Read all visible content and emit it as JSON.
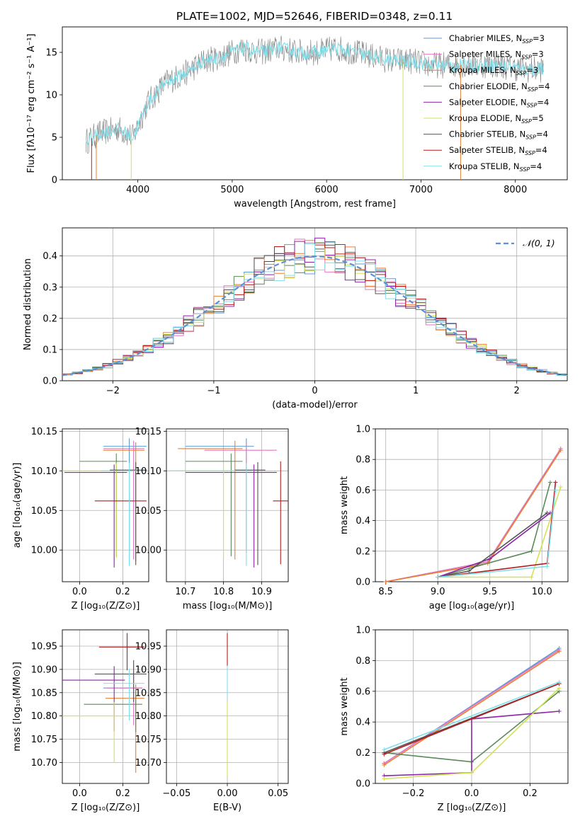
{
  "figure_title": "PLATE=1002, MJD=52646, FIBERID=0348, z=0.11",
  "colors": {
    "chab_miles": "#5b9bd5",
    "salp_miles": "#e377c2",
    "krou_miles": "#ed7d31",
    "chab_elodie": "#5a8a5a",
    "salp_elodie": "#8e24aa",
    "krou_elodie": "#d4e157",
    "chab_stelib": "#555555",
    "salp_stelib": "#b71c1c",
    "krou_stelib": "#80deea",
    "gauss": "#5b8fd6",
    "grid": "#b0b0b0"
  },
  "chart_data": [
    {
      "type": "line",
      "id": "spectrum",
      "title": "PLATE=1002, MJD=52646, FIBERID=0348, z=0.11",
      "xlabel": "wavelength [Angstrom, rest frame]",
      "ylabel": "Flux [fλ10⁻¹⁷ erg cm⁻² s⁻¹ A⁻¹]",
      "xlim": [
        3200,
        8550
      ],
      "ylim": [
        0,
        18
      ],
      "xticks": [
        4000,
        5000,
        6000,
        7000,
        8000
      ],
      "yticks": [
        0,
        5,
        10,
        15
      ],
      "grid": false,
      "legend_position": "right",
      "spectrum_envelope": {
        "x": [
          3450,
          3600,
          3800,
          3950,
          4100,
          4300,
          4500,
          4700,
          4900,
          5100,
          5300,
          5500,
          5700,
          5900,
          6100,
          6300,
          6500,
          6700,
          6900,
          7100,
          7300,
          7500,
          7800,
          8100,
          8300
        ],
        "y": [
          4.5,
          5.5,
          6.0,
          5.0,
          9.0,
          11.5,
          12.5,
          14.0,
          14.5,
          15.5,
          15.0,
          15.5,
          15.0,
          15.0,
          15.5,
          15.0,
          14.5,
          14.0,
          14.0,
          13.5,
          13.5,
          13.5,
          13.5,
          13.0,
          13.0
        ]
      },
      "legend": [
        "Chabrier MILES, N_SSP=3",
        "Salpeter MILES, N_SSP=3",
        "Kroupa MILES, N_SSP=3",
        "Chabrier ELODIE, N_SSP=4",
        "Salpeter ELODIE, N_SSP=4",
        "Kroupa ELODIE, N_SSP=5",
        "Chabrier STELIB, N_SSP=4",
        "Salpeter STELIB, N_SSP=4",
        "Kroupa STELIB, N_SSP=4"
      ]
    },
    {
      "type": "step",
      "id": "residuals",
      "xlabel": "(data-model)/error",
      "ylabel": "Normed distribution",
      "xlim": [
        -2.5,
        2.5
      ],
      "ylim": [
        0,
        0.49
      ],
      "xticks": [
        -2,
        -1,
        0,
        1,
        2
      ],
      "yticks": [
        0.0,
        0.1,
        0.2,
        0.3,
        0.4
      ],
      "grid": true,
      "legend_position": "top-right",
      "legend": [
        "𝒩(0, 1)"
      ],
      "bins": [
        -2.5,
        2.5,
        50
      ]
    },
    {
      "type": "errorbar",
      "id": "age_vs_Z",
      "xlabel": "Z [log₁₀(Z/Z⊙)]",
      "ylabel": "age  [log₁₀(age/yr)]",
      "xlim": [
        -0.08,
        0.32
      ],
      "ylim": [
        9.96,
        10.153
      ],
      "xticks": [
        0.0,
        0.2
      ],
      "yticks": [
        10.0,
        10.05,
        10.1,
        10.15
      ],
      "points": [
        {
          "s": "chab_miles",
          "x": 0.23,
          "xerr": [
            0.12,
            0.08
          ],
          "y": 10.131,
          "yerr": [
            0.13,
            0.01
          ]
        },
        {
          "s": "salp_miles",
          "x": 0.25,
          "xerr": [
            0.14,
            0.05
          ],
          "y": 10.128,
          "yerr": [
            0.14,
            0.01
          ]
        },
        {
          "s": "krou_miles",
          "x": 0.26,
          "xerr": [
            0.15,
            0.04
          ],
          "y": 10.126,
          "yerr": [
            0.14,
            0.01
          ]
        },
        {
          "s": "chab_elodie",
          "x": 0.17,
          "xerr": [
            0.17,
            0.05
          ],
          "y": 10.112,
          "yerr": [
            0.12,
            0.01
          ]
        },
        {
          "s": "salp_elodie",
          "x": 0.16,
          "xerr": [
            0.23,
            0.06
          ],
          "y": 10.098,
          "yerr": [
            0.12,
            0.01
          ]
        },
        {
          "s": "krou_elodie",
          "x": 0.17,
          "xerr": [
            0.25,
            0.06
          ],
          "y": 10.1,
          "yerr": [
            0.11,
            0.01
          ]
        },
        {
          "s": "chab_stelib",
          "x": 0.26,
          "xerr": [
            0.12,
            0.05
          ],
          "y": 10.101,
          "yerr": [
            0.12,
            0.01
          ]
        },
        {
          "s": "salp_stelib",
          "x": 0.23,
          "xerr": [
            0.16,
            0.08
          ],
          "y": 10.062,
          "yerr": [
            0.08,
            0.01
          ]
        },
        {
          "s": "krou_stelib",
          "x": 0.23,
          "xerr": [
            0.13,
            0.07
          ],
          "y": 10.1,
          "yerr": [
            0.12,
            0.01
          ]
        }
      ]
    },
    {
      "type": "errorbar",
      "id": "age_vs_mass",
      "xlabel": "mass [log₁₀(M/M⊙)]",
      "ylabel": "",
      "xlim": [
        10.65,
        10.97
      ],
      "ylim": [
        9.96,
        10.153
      ],
      "xticks": [
        10.7,
        10.8,
        10.9
      ],
      "yticks": [
        10.0,
        10.05,
        10.1,
        10.15
      ],
      "points": [
        {
          "s": "chab_miles",
          "x": 10.86,
          "xerr": [
            0.16,
            0.02
          ],
          "y": 10.131,
          "yerr": [
            0.13,
            0.01
          ]
        },
        {
          "s": "salp_miles",
          "x": 10.86,
          "xerr": [
            0.11,
            0.08
          ],
          "y": 10.126,
          "yerr": [
            0.13,
            0.01
          ]
        },
        {
          "s": "krou_miles",
          "x": 10.83,
          "xerr": [
            0.15,
            0.02
          ],
          "y": 10.128,
          "yerr": [
            0.14,
            0.01
          ]
        },
        {
          "s": "chab_elodie",
          "x": 10.82,
          "xerr": [
            0.12,
            0.03
          ],
          "y": 10.112,
          "yerr": [
            0.12,
            0.01
          ]
        },
        {
          "s": "salp_elodie",
          "x": 10.88,
          "xerr": [
            0.18,
            0.06
          ],
          "y": 10.098,
          "yerr": [
            0.12,
            0.01
          ]
        },
        {
          "s": "krou_elodie",
          "x": 10.8,
          "xerr": [
            0.14,
            0.04
          ],
          "y": 10.1,
          "yerr": [
            0.11,
            0.01
          ]
        },
        {
          "s": "chab_stelib",
          "x": 10.89,
          "xerr": [
            0.06,
            0.02
          ],
          "y": 10.101,
          "yerr": [
            0.12,
            0.01
          ]
        },
        {
          "s": "salp_stelib",
          "x": 10.95,
          "xerr": [
            0.02,
            0.02
          ],
          "y": 10.062,
          "yerr": [
            0.08,
            0.05
          ]
        },
        {
          "s": "krou_stelib",
          "x": 10.86,
          "xerr": [
            0.2,
            0.02
          ],
          "y": 10.1,
          "yerr": [
            0.12,
            0.01
          ]
        }
      ]
    },
    {
      "type": "line",
      "id": "weight_vs_age",
      "xlabel": "age  [log₁₀(age/yr)]",
      "ylabel": "mass weight",
      "xlim": [
        8.4,
        10.25
      ],
      "ylim": [
        0,
        1
      ],
      "xticks": [
        8.5,
        9.0,
        9.5,
        10.0
      ],
      "yticks": [
        0.0,
        0.2,
        0.4,
        0.6,
        0.8,
        1.0
      ],
      "grid": true,
      "series": [
        {
          "s": "chab_miles",
          "x": [
            8.5,
            9.48,
            10.18
          ],
          "y": [
            0.0,
            0.13,
            0.87
          ]
        },
        {
          "s": "salp_miles",
          "x": [
            8.5,
            9.48,
            10.18
          ],
          "y": [
            0.0,
            0.13,
            0.87
          ]
        },
        {
          "s": "krou_miles",
          "x": [
            8.5,
            9.48,
            10.18
          ],
          "y": [
            0.0,
            0.12,
            0.86
          ]
        },
        {
          "s": "chab_elodie",
          "x": [
            9.0,
            9.9,
            10.08
          ],
          "y": [
            0.03,
            0.2,
            0.65
          ]
        },
        {
          "s": "salp_elodie",
          "x": [
            9.0,
            9.5,
            10.08
          ],
          "y": [
            0.03,
            0.15,
            0.45
          ]
        },
        {
          "s": "krou_elodie",
          "x": [
            9.0,
            9.9,
            10.18
          ],
          "y": [
            0.03,
            0.03,
            0.62
          ]
        },
        {
          "s": "chab_stelib",
          "x": [
            9.0,
            9.3,
            10.05
          ],
          "y": [
            0.03,
            0.07,
            0.45
          ]
        },
        {
          "s": "salp_stelib",
          "x": [
            9.0,
            10.05,
            10.13
          ],
          "y": [
            0.03,
            0.12,
            0.65
          ]
        },
        {
          "s": "krou_stelib",
          "x": [
            9.0,
            10.05,
            10.13
          ],
          "y": [
            0.03,
            0.1,
            0.6
          ]
        }
      ]
    },
    {
      "type": "errorbar",
      "id": "mass_vs_Z",
      "xlabel": "Z [log₁₀(Z/Z⊙)]",
      "ylabel": "mass [log₁₀(M/M⊙)]",
      "xlim": [
        -0.08,
        0.32
      ],
      "ylim": [
        10.655,
        10.985
      ],
      "xticks": [
        0.0,
        0.2
      ],
      "yticks": [
        10.7,
        10.75,
        10.8,
        10.85,
        10.9,
        10.95
      ],
      "points": [
        {
          "s": "chab_miles",
          "x": 0.23,
          "xerr": [
            0.12,
            0.06
          ],
          "y": 10.86,
          "yerr": [
            0.03,
            0.03
          ]
        },
        {
          "s": "salp_miles",
          "x": 0.25,
          "xerr": [
            0.13,
            0.04
          ],
          "y": 10.86,
          "yerr": [
            0.08,
            0.05
          ]
        },
        {
          "s": "krou_miles",
          "x": 0.26,
          "xerr": [
            0.14,
            0.04
          ],
          "y": 10.838,
          "yerr": [
            0.16,
            0.03
          ]
        },
        {
          "s": "chab_elodie",
          "x": 0.26,
          "xerr": [
            0.24,
            0.03
          ],
          "y": 10.825,
          "yerr": [
            0.06,
            0.03
          ]
        },
        {
          "s": "salp_elodie",
          "x": 0.16,
          "xerr": [
            0.24,
            0.05
          ],
          "y": 10.877,
          "yerr": [
            0.11,
            0.03
          ]
        },
        {
          "s": "krou_elodie",
          "x": 0.16,
          "xerr": [
            0.25,
            0.05
          ],
          "y": 10.8,
          "yerr": [
            0.1,
            0.03
          ]
        },
        {
          "s": "chab_stelib",
          "x": 0.25,
          "xerr": [
            0.18,
            0.06
          ],
          "y": 10.89,
          "yerr": [
            0.06,
            0.03
          ]
        },
        {
          "s": "salp_stelib",
          "x": 0.22,
          "xerr": [
            0.13,
            0.08
          ],
          "y": 10.948,
          "yerr": [
            0.05,
            0.03
          ]
        },
        {
          "s": "krou_stelib",
          "x": 0.23,
          "xerr": [
            0.12,
            0.07
          ],
          "y": 10.87,
          "yerr": [
            0.08,
            0.03
          ]
        }
      ]
    },
    {
      "type": "errorbar",
      "id": "mass_vs_EBV",
      "xlabel": "E(B-V)",
      "ylabel": "",
      "xlim": [
        -0.06,
        0.06
      ],
      "ylim": [
        10.655,
        10.985
      ],
      "xticks": [
        -0.05,
        0.0,
        0.05
      ],
      "yticks": [
        10.7,
        10.75,
        10.8,
        10.85,
        10.9,
        10.95
      ],
      "points": [
        {
          "s": "krou_elodie",
          "x": 0.0,
          "xerr": [
            0.0,
            0.0
          ],
          "y": 10.8,
          "yerr": [
            0.13,
            0.03
          ]
        },
        {
          "s": "krou_stelib",
          "x": 0.0,
          "xerr": [
            0.0,
            0.0
          ],
          "y": 10.87,
          "yerr": [
            0.03,
            0.04
          ]
        },
        {
          "s": "salp_stelib",
          "x": 0.0,
          "xerr": [
            0.0,
            0.0
          ],
          "y": 10.948,
          "yerr": [
            0.04,
            0.03
          ]
        }
      ]
    },
    {
      "type": "line",
      "id": "weight_vs_Z",
      "xlabel": "Z [log₁₀(Z/Z⊙)]",
      "ylabel": "mass weight",
      "xlim": [
        -0.33,
        0.33
      ],
      "ylim": [
        0,
        1
      ],
      "xticks": [
        -0.2,
        0.0,
        0.2
      ],
      "yticks": [
        0.0,
        0.2,
        0.4,
        0.6,
        0.8,
        1.0
      ],
      "grid": true,
      "series": [
        {
          "s": "chab_miles",
          "x": [
            -0.3,
            0.3
          ],
          "y": [
            0.13,
            0.88
          ]
        },
        {
          "s": "salp_miles",
          "x": [
            -0.3,
            0.3
          ],
          "y": [
            0.13,
            0.87
          ]
        },
        {
          "s": "krou_miles",
          "x": [
            -0.3,
            0.3
          ],
          "y": [
            0.12,
            0.86
          ]
        },
        {
          "s": "chab_elodie",
          "x": [
            -0.3,
            0.0,
            0.0,
            0.3
          ],
          "y": [
            0.2,
            0.14,
            0.14,
            0.6
          ]
        },
        {
          "s": "salp_elodie",
          "x": [
            -0.3,
            0.0,
            0.0,
            0.3
          ],
          "y": [
            0.05,
            0.07,
            0.42,
            0.47
          ]
        },
        {
          "s": "krou_elodie",
          "x": [
            -0.3,
            0.0,
            0.3
          ],
          "y": [
            0.03,
            0.07,
            0.62
          ]
        },
        {
          "s": "chab_stelib",
          "x": [
            -0.3,
            0.3
          ],
          "y": [
            0.2,
            0.65
          ]
        },
        {
          "s": "salp_stelib",
          "x": [
            -0.3,
            0.3
          ],
          "y": [
            0.19,
            0.65
          ]
        },
        {
          "s": "krou_stelib",
          "x": [
            -0.3,
            0.3
          ],
          "y": [
            0.22,
            0.66
          ]
        }
      ]
    }
  ]
}
